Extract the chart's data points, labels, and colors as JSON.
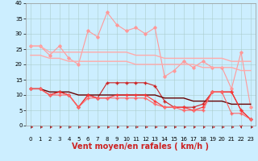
{
  "x": [
    0,
    1,
    2,
    3,
    4,
    5,
    6,
    7,
    8,
    9,
    10,
    11,
    12,
    13,
    14,
    15,
    16,
    17,
    18,
    19,
    20,
    21,
    22,
    23
  ],
  "series": [
    {
      "name": "rafales_max",
      "color": "#ff9999",
      "linewidth": 0.8,
      "marker": "D",
      "markersize": 1.8,
      "y": [
        26,
        26,
        23,
        26,
        22,
        20,
        31,
        29,
        37,
        33,
        31,
        32,
        30,
        32,
        16,
        18,
        21,
        19,
        21,
        19,
        19,
        12,
        24,
        6
      ]
    },
    {
      "name": "rafales_mean_high",
      "color": "#ffaaaa",
      "linewidth": 1.0,
      "marker": "None",
      "markersize": 0,
      "y": [
        26,
        26,
        24,
        24,
        24,
        24,
        24,
        24,
        24,
        24,
        24,
        23,
        23,
        23,
        22,
        22,
        22,
        22,
        22,
        22,
        22,
        21,
        21,
        21
      ]
    },
    {
      "name": "rafales_mean_low",
      "color": "#ffaaaa",
      "linewidth": 1.0,
      "marker": "None",
      "markersize": 0,
      "y": [
        23,
        23,
        22,
        22,
        21,
        21,
        21,
        21,
        21,
        21,
        21,
        20,
        20,
        20,
        20,
        20,
        20,
        20,
        19,
        19,
        19,
        19,
        18,
        18
      ]
    },
    {
      "name": "vent_max",
      "color": "#cc2222",
      "linewidth": 0.8,
      "marker": "+",
      "markersize": 3,
      "y": [
        12,
        12,
        10,
        11,
        10,
        6,
        10,
        9,
        14,
        14,
        14,
        14,
        14,
        13,
        8,
        6,
        6,
        6,
        7,
        11,
        11,
        11,
        5,
        2
      ]
    },
    {
      "name": "vent_mean",
      "color": "#660000",
      "linewidth": 1.0,
      "marker": "None",
      "markersize": 0,
      "y": [
        12,
        12,
        11,
        11,
        11,
        10,
        10,
        10,
        10,
        10,
        10,
        10,
        10,
        10,
        9,
        9,
        9,
        8,
        8,
        8,
        8,
        7,
        7,
        7
      ]
    },
    {
      "name": "vent_min",
      "color": "#ff3333",
      "linewidth": 0.8,
      "marker": "+",
      "markersize": 2.5,
      "y": [
        12,
        12,
        10,
        11,
        10,
        6,
        10,
        9,
        9,
        10,
        10,
        10,
        10,
        8,
        6,
        6,
        6,
        5,
        6,
        11,
        11,
        11,
        5,
        2
      ]
    },
    {
      "name": "vent_low",
      "color": "#ff6666",
      "linewidth": 0.8,
      "marker": "+",
      "markersize": 2.5,
      "y": [
        12,
        12,
        10,
        10,
        10,
        6,
        9,
        9,
        9,
        9,
        9,
        9,
        9,
        7,
        6,
        6,
        5,
        5,
        5,
        11,
        11,
        4,
        4,
        2
      ]
    }
  ],
  "xlabel": "Vent moyen/en rafales ( km/h )",
  "xlim": [
    -0.5,
    23.5
  ],
  "ylim": [
    -1,
    40
  ],
  "yticks": [
    0,
    5,
    10,
    15,
    20,
    25,
    30,
    35,
    40
  ],
  "xticks": [
    0,
    1,
    2,
    3,
    4,
    5,
    6,
    7,
    8,
    9,
    10,
    11,
    12,
    13,
    14,
    15,
    16,
    17,
    18,
    19,
    20,
    21,
    22,
    23
  ],
  "background_color": "#cceeff",
  "grid_color": "#aacccc",
  "xlabel_fontsize": 7,
  "tick_fontsize": 5,
  "arrow_color": "#cc2222",
  "arrow_directions": [
    1,
    1,
    1,
    1,
    1,
    1,
    1,
    1,
    1,
    1,
    1,
    1,
    1,
    1,
    1,
    1,
    1,
    1,
    1,
    1,
    1,
    1,
    0,
    1
  ]
}
